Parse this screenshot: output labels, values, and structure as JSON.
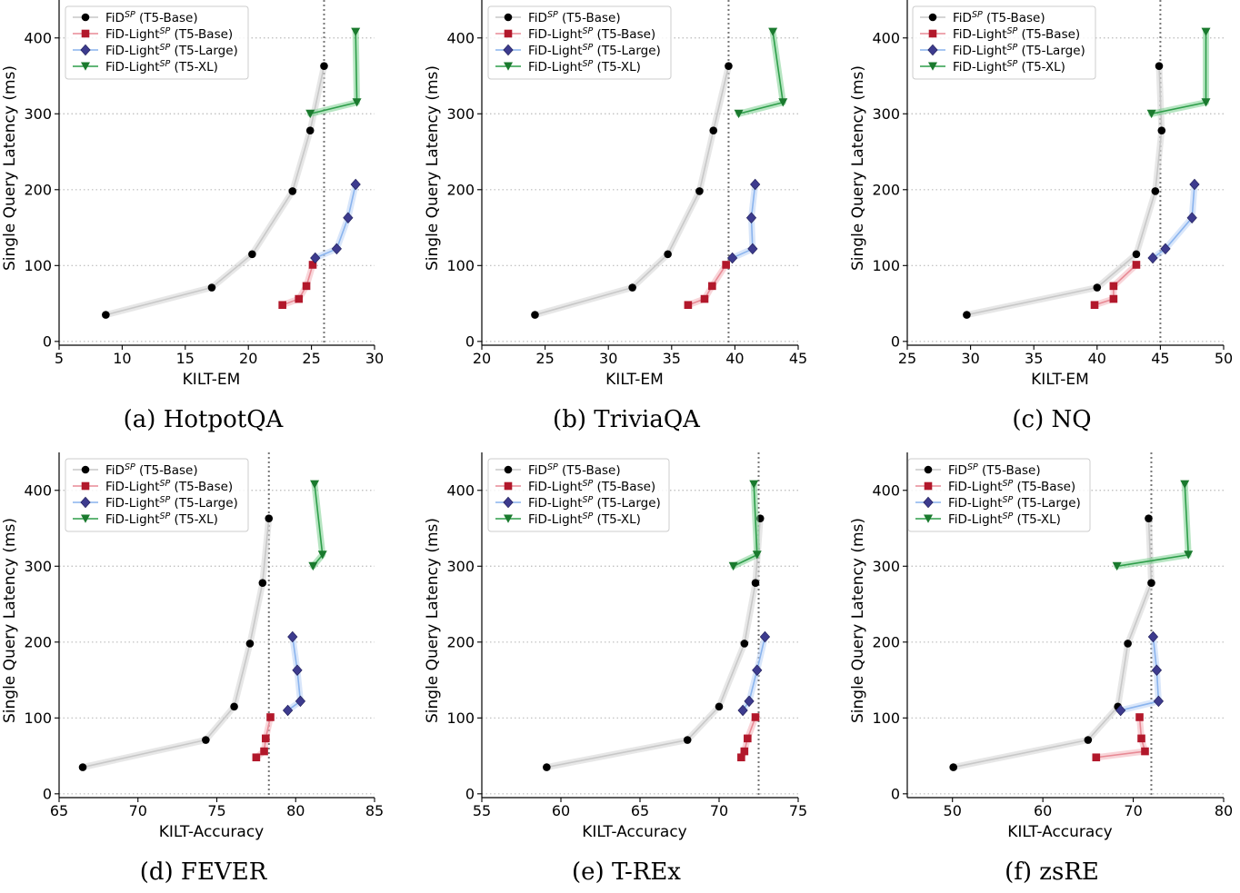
{
  "legend": {
    "entries": [
      {
        "label": "FiD",
        "sup": "SP",
        "suffix": " (T5-Base)",
        "color": "#000000",
        "line": "#c8c8c8",
        "marker": "circle"
      },
      {
        "label": "FiD-Light",
        "sup": "SP",
        "suffix": " (T5-Base)",
        "color": "#b2182b",
        "line": "#e88a95",
        "marker": "square"
      },
      {
        "label": "FiD-Light",
        "sup": "SP",
        "suffix": " (T5-Large)",
        "color": "#3d3b8e",
        "line": "#8ab4ee",
        "marker": "diamond"
      },
      {
        "label": "FiD-Light",
        "sup": "SP",
        "suffix": " (T5-XL)",
        "color": "#1a7a2e",
        "line": "#2e9e4a",
        "marker": "triangle-down"
      }
    ]
  },
  "colors": {
    "dashed_line": "#777777",
    "grid": "#bbbbbb",
    "band_gray": "#d4d4d4",
    "band_red": "#f2b3ba",
    "band_blue": "#b9d2f5",
    "band_green": "#7ccf8f"
  },
  "chart_data": [
    {
      "type": "line",
      "caption": "(a) HotpotQA",
      "xlabel": "KILT-EM",
      "ylabel": "Single Query Latency (ms)",
      "xlim": [
        5,
        30
      ],
      "ylim": [
        -5,
        450
      ],
      "xticks": [
        5,
        10,
        15,
        20,
        25,
        30
      ],
      "yticks": [
        0,
        100,
        200,
        300,
        400
      ],
      "vline": 26.0,
      "series": [
        {
          "name": "FiD^SP (T5-Base)",
          "x": [
            8.7,
            17.1,
            20.3,
            23.5,
            24.9,
            26.0
          ],
          "y": [
            35,
            71,
            115,
            198,
            278,
            363
          ]
        },
        {
          "name": "FiD-Light^SP (T5-Base)",
          "x": [
            22.7,
            24.0,
            24.6,
            25.1
          ],
          "y": [
            48,
            56,
            73,
            101
          ]
        },
        {
          "name": "FiD-Light^SP (T5-Large)",
          "x": [
            25.3,
            27.0,
            27.9,
            28.5
          ],
          "y": [
            110,
            122,
            163,
            207
          ]
        },
        {
          "name": "FiD-Light^SP (T5-XL)",
          "x": [
            24.9,
            28.6,
            28.5
          ],
          "y": [
            300,
            315,
            408
          ]
        }
      ]
    },
    {
      "type": "line",
      "caption": "(b) TriviaQA",
      "xlabel": "KILT-EM",
      "ylabel": "Single Query Latency (ms)",
      "xlim": [
        20,
        45
      ],
      "ylim": [
        -5,
        450
      ],
      "xticks": [
        20,
        25,
        30,
        35,
        40,
        45
      ],
      "yticks": [
        0,
        100,
        200,
        300,
        400
      ],
      "vline": 39.5,
      "series": [
        {
          "name": "FiD^SP (T5-Base)",
          "x": [
            24.2,
            31.9,
            34.7,
            37.2,
            38.3,
            39.5
          ],
          "y": [
            35,
            71,
            115,
            198,
            278,
            363
          ]
        },
        {
          "name": "FiD-Light^SP (T5-Base)",
          "x": [
            36.3,
            37.6,
            38.2,
            39.3
          ],
          "y": [
            48,
            56,
            73,
            101
          ]
        },
        {
          "name": "FiD-Light^SP (T5-Large)",
          "x": [
            39.8,
            41.4,
            41.3,
            41.6
          ],
          "y": [
            110,
            122,
            163,
            207
          ]
        },
        {
          "name": "FiD-Light^SP (T5-XL)",
          "x": [
            40.3,
            43.8,
            43.0
          ],
          "y": [
            300,
            315,
            408
          ]
        }
      ]
    },
    {
      "type": "line",
      "caption": "(c) NQ",
      "xlabel": "KILT-EM",
      "ylabel": "Single Query Latency (ms)",
      "xlim": [
        25,
        50
      ],
      "ylim": [
        -5,
        450
      ],
      "xticks": [
        25,
        30,
        35,
        40,
        45,
        50
      ],
      "yticks": [
        0,
        100,
        200,
        300,
        400
      ],
      "vline": 45.0,
      "series": [
        {
          "name": "FiD^SP (T5-Base)",
          "x": [
            29.7,
            40.0,
            43.1,
            44.6,
            45.1,
            44.9
          ],
          "y": [
            35,
            71,
            115,
            198,
            278,
            363
          ]
        },
        {
          "name": "FiD-Light^SP (T5-Base)",
          "x": [
            39.8,
            41.3,
            41.3,
            43.1
          ],
          "y": [
            48,
            56,
            73,
            101
          ]
        },
        {
          "name": "FiD-Light^SP (T5-Large)",
          "x": [
            44.4,
            45.4,
            47.5,
            47.7
          ],
          "y": [
            110,
            122,
            163,
            207
          ]
        },
        {
          "name": "FiD-Light^SP (T5-XL)",
          "x": [
            44.3,
            48.6,
            48.6
          ],
          "y": [
            300,
            315,
            408
          ]
        }
      ]
    },
    {
      "type": "line",
      "caption": "(d) FEVER",
      "xlabel": "KILT-Accuracy",
      "ylabel": "Single Query Latency (ms)",
      "xlim": [
        65,
        85
      ],
      "ylim": [
        -5,
        450
      ],
      "xticks": [
        65,
        70,
        75,
        80,
        85
      ],
      "yticks": [
        0,
        100,
        200,
        300,
        400
      ],
      "vline": 78.3,
      "series": [
        {
          "name": "FiD^SP (T5-Base)",
          "x": [
            66.5,
            74.3,
            76.1,
            77.1,
            77.9,
            78.3
          ],
          "y": [
            35,
            71,
            115,
            198,
            278,
            363
          ]
        },
        {
          "name": "FiD-Light^SP (T5-Base)",
          "x": [
            77.5,
            78.0,
            78.1,
            78.4
          ],
          "y": [
            48,
            56,
            73,
            101
          ]
        },
        {
          "name": "FiD-Light^SP (T5-Large)",
          "x": [
            79.5,
            80.3,
            80.1,
            79.8
          ],
          "y": [
            110,
            122,
            163,
            207
          ]
        },
        {
          "name": "FiD-Light^SP (T5-XL)",
          "x": [
            81.1,
            81.7,
            81.2
          ],
          "y": [
            300,
            315,
            408
          ]
        }
      ]
    },
    {
      "type": "line",
      "caption": "(e) T-REx",
      "xlabel": "KILT-Accuracy",
      "ylabel": "Single Query Latency (ms)",
      "xlim": [
        55,
        75
      ],
      "ylim": [
        -5,
        450
      ],
      "xticks": [
        55,
        60,
        65,
        70,
        75
      ],
      "yticks": [
        0,
        100,
        200,
        300,
        400
      ],
      "vline": 72.5,
      "series": [
        {
          "name": "FiD^SP (T5-Base)",
          "x": [
            59.1,
            68.0,
            70.0,
            71.6,
            72.3,
            72.6
          ],
          "y": [
            35,
            71,
            115,
            198,
            278,
            363
          ]
        },
        {
          "name": "FiD-Light^SP (T5-Base)",
          "x": [
            71.4,
            71.6,
            71.8,
            72.3
          ],
          "y": [
            48,
            56,
            73,
            101
          ]
        },
        {
          "name": "FiD-Light^SP (T5-Large)",
          "x": [
            71.5,
            71.9,
            72.4,
            72.9
          ],
          "y": [
            110,
            122,
            163,
            207
          ]
        },
        {
          "name": "FiD-Light^SP (T5-XL)",
          "x": [
            70.9,
            72.4,
            72.2
          ],
          "y": [
            300,
            315,
            408
          ]
        }
      ]
    },
    {
      "type": "line",
      "caption": "(f) zsRE",
      "xlabel": "KILT-Accuracy",
      "ylabel": "Single Query Latency (ms)",
      "xlim": [
        45,
        80
      ],
      "ylim": [
        -5,
        450
      ],
      "xticks": [
        50,
        60,
        70,
        80
      ],
      "yticks": [
        0,
        100,
        200,
        300,
        400
      ],
      "vline": 72.0,
      "series": [
        {
          "name": "FiD^SP (T5-Base)",
          "x": [
            50.1,
            65.0,
            68.3,
            69.4,
            72.0,
            71.7
          ],
          "y": [
            35,
            71,
            115,
            198,
            278,
            363
          ]
        },
        {
          "name": "FiD-Light^SP (T5-Base)",
          "x": [
            65.9,
            71.3,
            70.9,
            70.7
          ],
          "y": [
            48,
            56,
            73,
            101
          ]
        },
        {
          "name": "FiD-Light^SP (T5-Large)",
          "x": [
            68.6,
            72.8,
            72.6,
            72.2
          ],
          "y": [
            110,
            122,
            163,
            207
          ]
        },
        {
          "name": "FiD-Light^SP (T5-XL)",
          "x": [
            68.2,
            76.1,
            75.7
          ],
          "y": [
            300,
            315,
            408
          ]
        }
      ]
    }
  ]
}
